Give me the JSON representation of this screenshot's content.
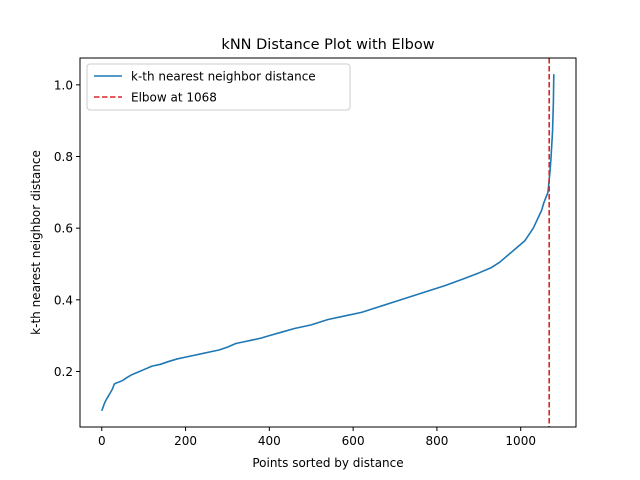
{
  "chart_data": {
    "type": "line",
    "title": "kNN Distance Plot with Elbow",
    "xlabel": "Points sorted by distance",
    "ylabel": "k-th nearest neighbor distance",
    "xlim": [
      -52,
      1132
    ],
    "ylim": [
      0.045,
      1.075
    ],
    "xticks": [
      0,
      200,
      400,
      600,
      800,
      1000
    ],
    "xtick_labels": [
      "0",
      "200",
      "400",
      "600",
      "800",
      "1000"
    ],
    "yticks": [
      0.2,
      0.4,
      0.6,
      0.8,
      1.0
    ],
    "ytick_labels": [
      "0.2",
      "0.4",
      "0.6",
      "0.8",
      "1.0"
    ],
    "grid": false,
    "legend": "upper-left",
    "series": [
      {
        "name": "k-th nearest neighbor distance",
        "color": "#1f77b4",
        "style": "solid",
        "x": [
          0,
          3,
          6,
          10,
          15,
          20,
          25,
          30,
          35,
          40,
          50,
          60,
          70,
          80,
          90,
          100,
          120,
          140,
          160,
          180,
          200,
          220,
          240,
          260,
          280,
          300,
          320,
          340,
          360,
          380,
          400,
          430,
          460,
          500,
          540,
          580,
          620,
          660,
          700,
          740,
          780,
          820,
          860,
          900,
          930,
          950,
          970,
          990,
          1010,
          1030,
          1040,
          1050,
          1055,
          1060,
          1065,
          1068,
          1070,
          1072,
          1074,
          1076,
          1078,
          1079
        ],
        "y": [
          0.09,
          0.1,
          0.11,
          0.12,
          0.13,
          0.14,
          0.15,
          0.165,
          0.168,
          0.17,
          0.175,
          0.183,
          0.19,
          0.195,
          0.2,
          0.205,
          0.215,
          0.22,
          0.228,
          0.235,
          0.24,
          0.245,
          0.25,
          0.255,
          0.26,
          0.268,
          0.278,
          0.283,
          0.288,
          0.293,
          0.3,
          0.31,
          0.32,
          0.33,
          0.345,
          0.355,
          0.365,
          0.38,
          0.395,
          0.41,
          0.425,
          0.44,
          0.457,
          0.475,
          0.49,
          0.505,
          0.525,
          0.545,
          0.565,
          0.6,
          0.625,
          0.65,
          0.67,
          0.685,
          0.7,
          0.735,
          0.76,
          0.79,
          0.83,
          0.87,
          0.95,
          1.03
        ]
      }
    ],
    "vlines": [
      {
        "name": "Elbow at 1068",
        "x": 1068,
        "color": "#d62728",
        "style": "dashed"
      }
    ]
  }
}
